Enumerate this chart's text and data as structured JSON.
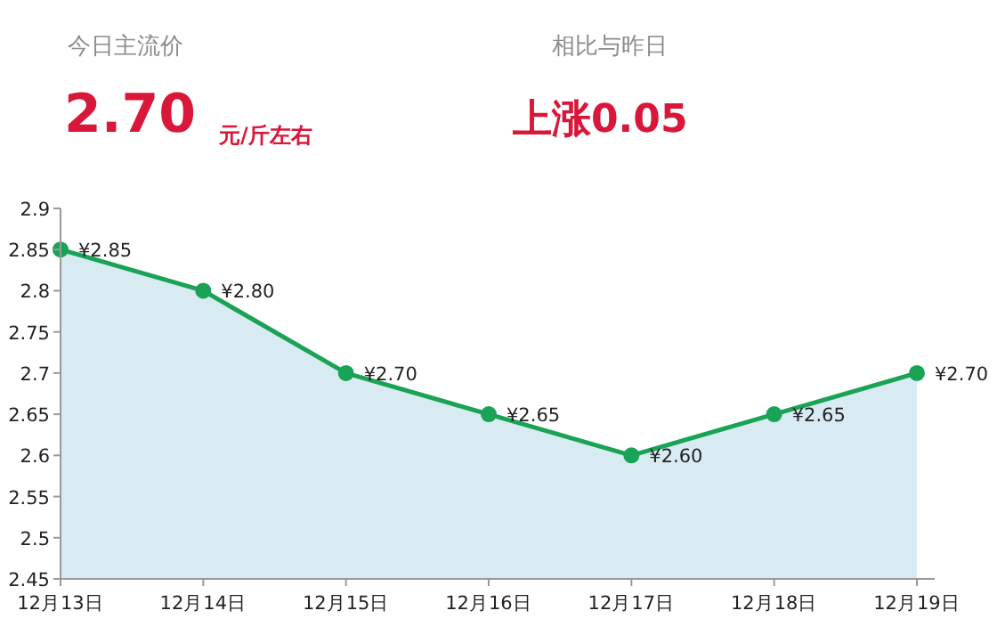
{
  "chart_data": {
    "type": "area",
    "annotations": [
      "今日主流价",
      "2.70",
      "元/斤左右",
      "相比与昨日",
      "上涨0.05"
    ],
    "categories": [
      "12月13日",
      "12月14日",
      "12月15日",
      "12月16日",
      "12月17日",
      "12月18日",
      "12月19日"
    ],
    "series": [
      {
        "color": "#1aa356",
        "values": [
          2.85,
          2.8,
          2.7,
          2.65,
          2.6,
          2.65,
          2.7
        ],
        "value_labels": [
          "¥2.85",
          "¥2.80",
          "¥2.70",
          "¥2.65",
          "¥2.60",
          "¥2.65",
          "¥2.70"
        ]
      }
    ],
    "ylim": [
      2.45,
      2.9
    ],
    "yticks": [
      2.45,
      2.5,
      2.55,
      2.6,
      2.65,
      2.7,
      2.75,
      2.8,
      2.85,
      2.9
    ],
    "marker": "circle",
    "line_style": "solid",
    "grid": false
  }
}
